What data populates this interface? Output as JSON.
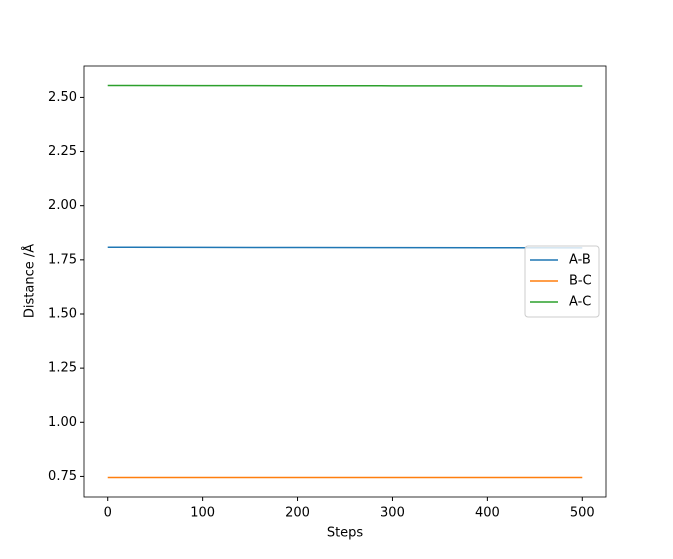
{
  "chart_data": {
    "type": "line",
    "xlabel": "Steps",
    "ylabel": "Distance /Å",
    "x": [
      0,
      100,
      200,
      300,
      400,
      500
    ],
    "series": [
      {
        "name": "A-B",
        "color": "#1f77b4",
        "values": [
          1.808,
          1.8075,
          1.807,
          1.8065,
          1.806,
          1.8055
        ]
      },
      {
        "name": "B-C",
        "color": "#ff7f0e",
        "values": [
          0.745,
          0.745,
          0.745,
          0.745,
          0.745,
          0.745
        ]
      },
      {
        "name": "A-C",
        "color": "#2ca02c",
        "values": [
          2.555,
          2.5545,
          2.554,
          2.5535,
          2.553,
          2.5525
        ]
      }
    ],
    "xlim": [
      -25,
      525
    ],
    "xticks": [
      0,
      100,
      200,
      300,
      400,
      500
    ],
    "ylim": [
      0.655,
      2.645
    ],
    "yticks": [
      {
        "value": 0.75,
        "label": "0.75"
      },
      {
        "value": 1.0,
        "label": "1.00"
      },
      {
        "value": 1.25,
        "label": "1.25"
      },
      {
        "value": 1.5,
        "label": "1.50"
      },
      {
        "value": 1.75,
        "label": "1.75"
      },
      {
        "value": 2.0,
        "label": "2.00"
      },
      {
        "value": 2.25,
        "label": "2.25"
      },
      {
        "value": 2.5,
        "label": "2.50"
      }
    ],
    "legend": "center right",
    "grid": false
  }
}
